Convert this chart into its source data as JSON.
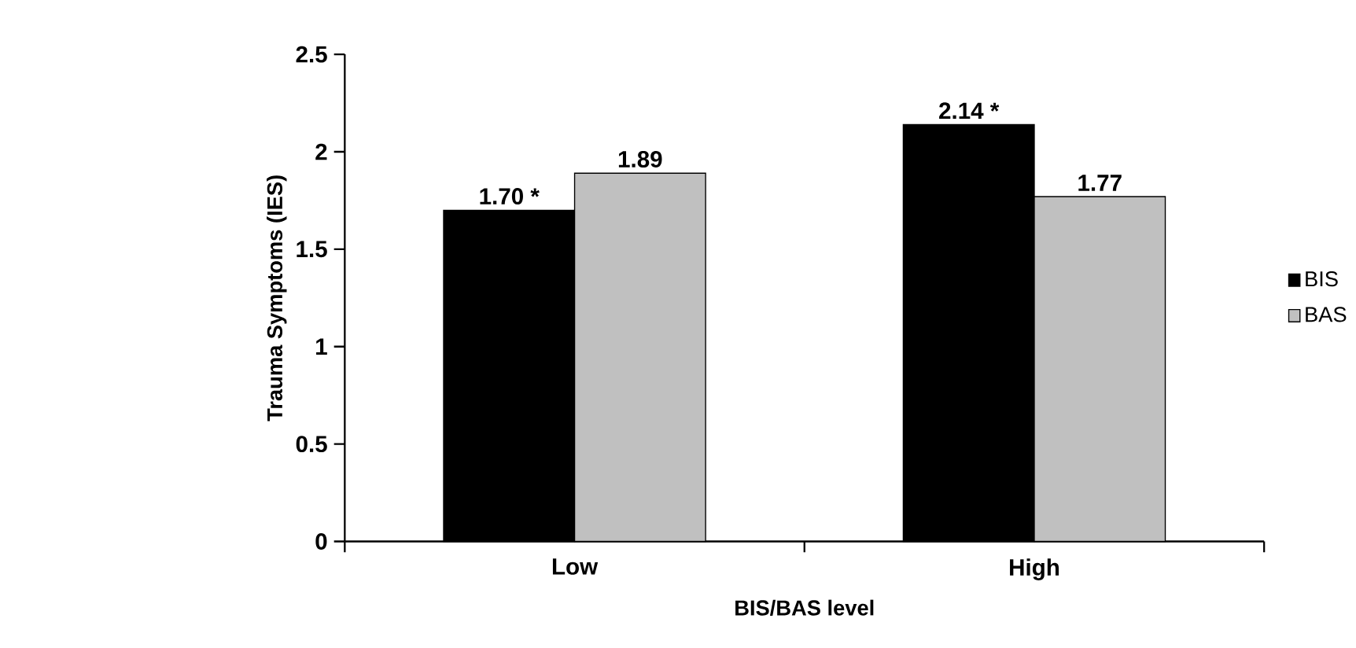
{
  "chart_data": {
    "type": "bar",
    "xlabel": "BIS/BAS level",
    "ylabel": "Trauma Symptoms (IES)",
    "categories": [
      "Low",
      "High"
    ],
    "series": [
      {
        "name": "BIS",
        "color": "#000000",
        "values": [
          1.7,
          2.14
        ],
        "value_labels": [
          "1.70 *",
          "2.14 *"
        ]
      },
      {
        "name": "BAS",
        "color": "#c0c0c0",
        "values": [
          1.89,
          1.77
        ],
        "value_labels": [
          "1.89",
          "1.77"
        ]
      }
    ],
    "ylim": [
      0,
      2.5
    ],
    "yticks": [
      0,
      0.5,
      1,
      1.5,
      2,
      2.5
    ],
    "legend": "right",
    "grid": false
  }
}
